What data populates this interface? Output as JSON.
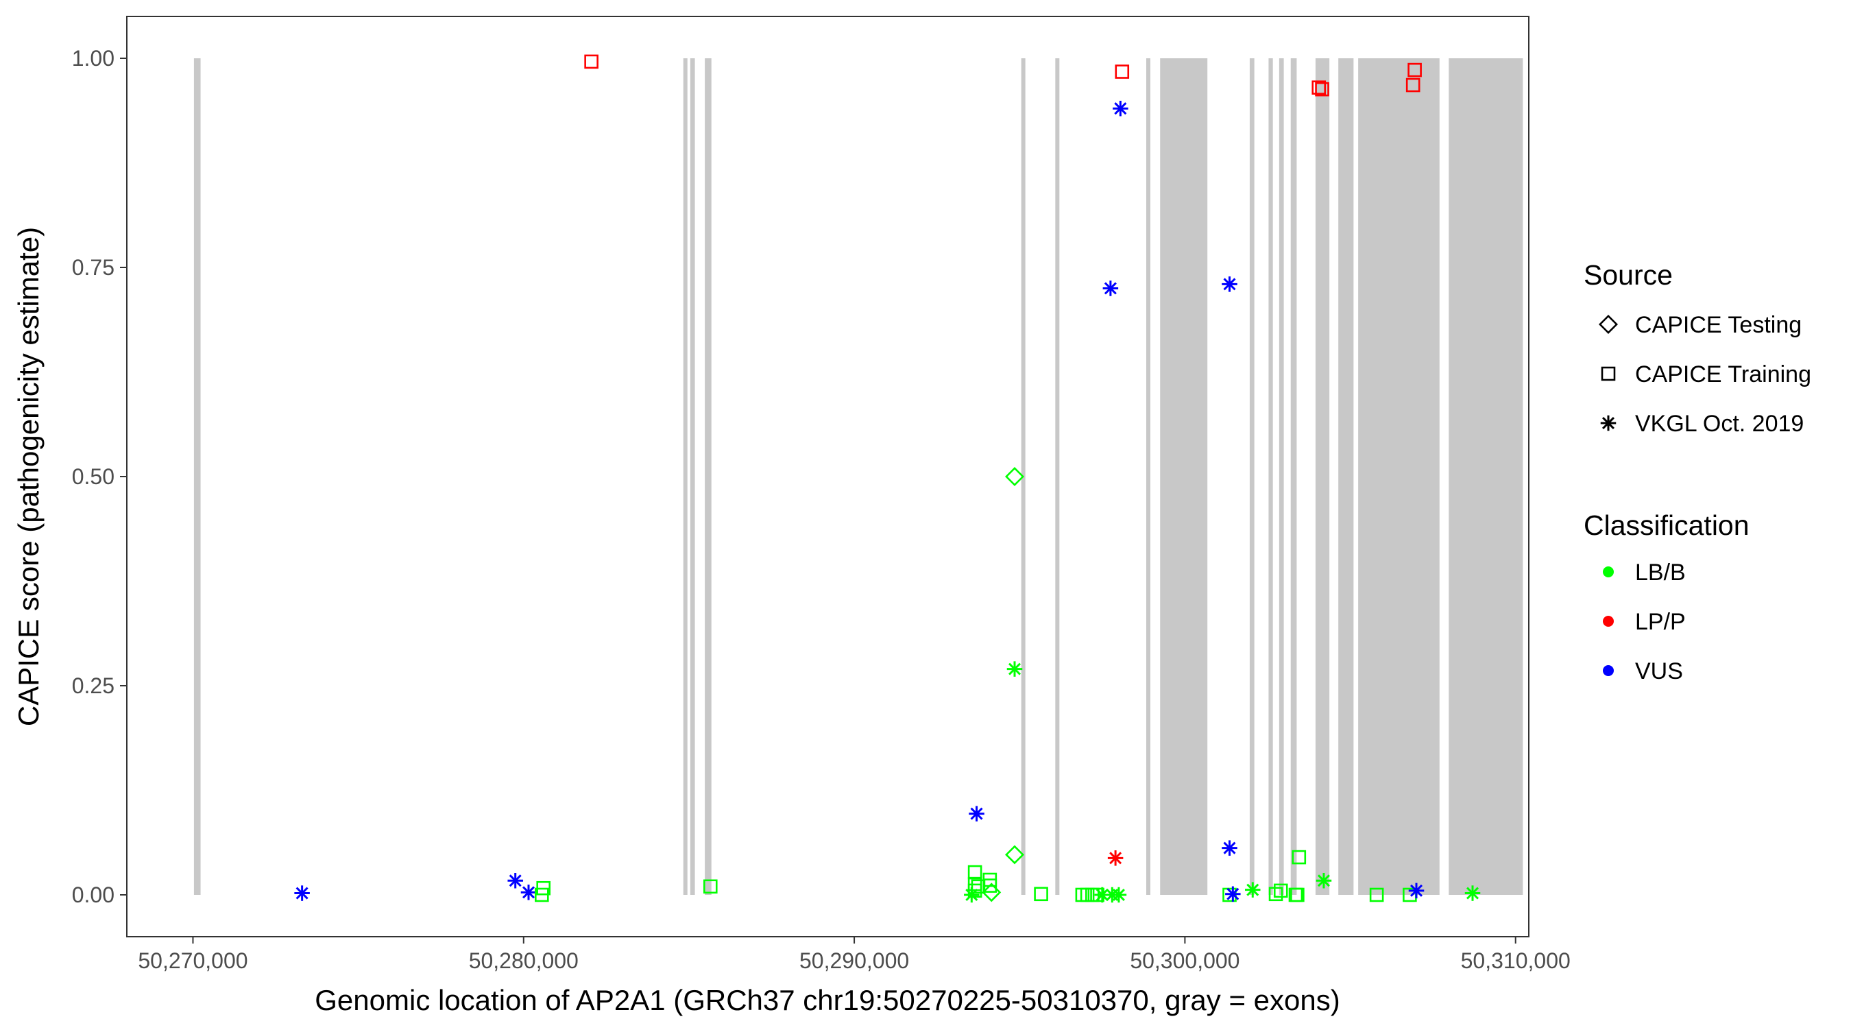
{
  "colors": {
    "lbb": "#00ff00",
    "lpp": "#ff0000",
    "vus": "#0000ff",
    "exon": "#c8c8c8",
    "axis": "#333333",
    "panel_border": "#333333"
  },
  "chart_data": {
    "type": "scatter",
    "xlabel": "Genomic location of AP2A1 (GRCh37 chr19:50270225-50310370, gray = exons)",
    "ylabel": "CAPICE score (pathogenicity estimate)",
    "xlim": [
      50268000,
      50310400
    ],
    "ylim": [
      -0.05,
      1.05
    ],
    "x_ticks": [
      50270000,
      50280000,
      50290000,
      50300000,
      50310000
    ],
    "x_tick_labels": [
      "50,270,000",
      "50,280,000",
      "50,290,000",
      "50,300,000",
      "50,310,000"
    ],
    "y_ticks": [
      0,
      0.25,
      0.5,
      0.75,
      1.0
    ],
    "y_tick_labels": [
      "0.00",
      "0.25",
      "0.50",
      "0.75",
      "1.00"
    ],
    "grid": false,
    "exons": [
      [
        50270030,
        50270230
      ],
      [
        50284830,
        50284920
      ],
      [
        50285040,
        50285180
      ],
      [
        50285480,
        50285680
      ],
      [
        50295050,
        50295140
      ],
      [
        50296080,
        50296180
      ],
      [
        50298830,
        50298950
      ],
      [
        50299250,
        50300680
      ],
      [
        50301960,
        50302100
      ],
      [
        50302530,
        50302660
      ],
      [
        50302850,
        50302990
      ],
      [
        50303200,
        50303380
      ],
      [
        50303950,
        50304370
      ],
      [
        50304640,
        50305100
      ],
      [
        50305240,
        50307700
      ],
      [
        50307980,
        50310220
      ]
    ],
    "legend": {
      "placement": "right",
      "source_title": "Source",
      "source_items": [
        {
          "label": "CAPICE Testing",
          "shape": "diamond"
        },
        {
          "label": "CAPICE Training",
          "shape": "square"
        },
        {
          "label": "VKGL Oct. 2019",
          "shape": "asterisk"
        }
      ],
      "class_title": "Classification",
      "class_items": [
        {
          "label": "LB/B",
          "color": "#00ff00"
        },
        {
          "label": "LP/P",
          "color": "#ff0000"
        },
        {
          "label": "VUS",
          "color": "#0000ff"
        }
      ]
    },
    "points": [
      {
        "x": 50273300,
        "y": 0.002,
        "shape": "asterisk",
        "class": "VUS"
      },
      {
        "x": 50279750,
        "y": 0.017,
        "shape": "asterisk",
        "class": "VUS"
      },
      {
        "x": 50280150,
        "y": 0.003,
        "shape": "asterisk",
        "class": "VUS"
      },
      {
        "x": 50280550,
        "y": 0.0,
        "shape": "square",
        "class": "LB/B"
      },
      {
        "x": 50280600,
        "y": 0.008,
        "shape": "square",
        "class": "LB/B"
      },
      {
        "x": 50282050,
        "y": 0.996,
        "shape": "square",
        "class": "LP/P"
      },
      {
        "x": 50285650,
        "y": 0.01,
        "shape": "square",
        "class": "LB/B"
      },
      {
        "x": 50293550,
        "y": 0.0,
        "shape": "asterisk",
        "class": "LB/B"
      },
      {
        "x": 50293650,
        "y": 0.005,
        "shape": "square",
        "class": "LB/B"
      },
      {
        "x": 50293650,
        "y": 0.013,
        "shape": "square",
        "class": "LB/B"
      },
      {
        "x": 50293650,
        "y": 0.027,
        "shape": "square",
        "class": "LB/B"
      },
      {
        "x": 50293700,
        "y": 0.097,
        "shape": "asterisk",
        "class": "VUS"
      },
      {
        "x": 50293750,
        "y": 0.01,
        "shape": "square",
        "class": "LB/B"
      },
      {
        "x": 50294100,
        "y": 0.011,
        "shape": "square",
        "class": "LB/B"
      },
      {
        "x": 50294100,
        "y": 0.018,
        "shape": "square",
        "class": "LB/B"
      },
      {
        "x": 50294150,
        "y": 0.003,
        "shape": "diamond",
        "class": "LB/B"
      },
      {
        "x": 50294850,
        "y": 0.5,
        "shape": "diamond",
        "class": "LB/B"
      },
      {
        "x": 50294850,
        "y": 0.048,
        "shape": "diamond",
        "class": "LB/B"
      },
      {
        "x": 50294850,
        "y": 0.27,
        "shape": "asterisk",
        "class": "LB/B"
      },
      {
        "x": 50295650,
        "y": 0.001,
        "shape": "square",
        "class": "LB/B"
      },
      {
        "x": 50296900,
        "y": 0.0,
        "shape": "square",
        "class": "LB/B"
      },
      {
        "x": 50297050,
        "y": 0.0,
        "shape": "square",
        "class": "LB/B"
      },
      {
        "x": 50297200,
        "y": 0.0,
        "shape": "square",
        "class": "LB/B"
      },
      {
        "x": 50297350,
        "y": 0.0,
        "shape": "square",
        "class": "LB/B"
      },
      {
        "x": 50297500,
        "y": 0.0,
        "shape": "asterisk",
        "class": "LB/B"
      },
      {
        "x": 50297750,
        "y": 0.725,
        "shape": "asterisk",
        "class": "VUS"
      },
      {
        "x": 50297800,
        "y": 0.0,
        "shape": "asterisk",
        "class": "LB/B"
      },
      {
        "x": 50297900,
        "y": 0.044,
        "shape": "asterisk",
        "class": "LP/P"
      },
      {
        "x": 50298000,
        "y": 0.0,
        "shape": "asterisk",
        "class": "LB/B"
      },
      {
        "x": 50298050,
        "y": 0.94,
        "shape": "asterisk",
        "class": "VUS"
      },
      {
        "x": 50298100,
        "y": 0.984,
        "shape": "square",
        "class": "LP/P"
      },
      {
        "x": 50301350,
        "y": 0.73,
        "shape": "asterisk",
        "class": "VUS"
      },
      {
        "x": 50301350,
        "y": 0.056,
        "shape": "asterisk",
        "class": "VUS"
      },
      {
        "x": 50301350,
        "y": 0.0,
        "shape": "square",
        "class": "LB/B"
      },
      {
        "x": 50301450,
        "y": 0.001,
        "shape": "asterisk",
        "class": "VUS"
      },
      {
        "x": 50302050,
        "y": 0.006,
        "shape": "asterisk",
        "class": "LB/B"
      },
      {
        "x": 50302750,
        "y": 0.001,
        "shape": "square",
        "class": "LB/B"
      },
      {
        "x": 50302900,
        "y": 0.005,
        "shape": "square",
        "class": "LB/B"
      },
      {
        "x": 50303350,
        "y": 0.0,
        "shape": "square",
        "class": "LB/B"
      },
      {
        "x": 50303400,
        "y": 0.0,
        "shape": "square",
        "class": "LB/B"
      },
      {
        "x": 50303450,
        "y": 0.045,
        "shape": "square",
        "class": "LB/B"
      },
      {
        "x": 50304050,
        "y": 0.965,
        "shape": "square",
        "class": "LP/P"
      },
      {
        "x": 50304150,
        "y": 0.963,
        "shape": "square",
        "class": "LP/P"
      },
      {
        "x": 50304200,
        "y": 0.017,
        "shape": "asterisk",
        "class": "LB/B"
      },
      {
        "x": 50305800,
        "y": 0.0,
        "shape": "square",
        "class": "LB/B"
      },
      {
        "x": 50306800,
        "y": 0.0,
        "shape": "square",
        "class": "LB/B"
      },
      {
        "x": 50306900,
        "y": 0.968,
        "shape": "square",
        "class": "LP/P"
      },
      {
        "x": 50306950,
        "y": 0.986,
        "shape": "square",
        "class": "LP/P"
      },
      {
        "x": 50307000,
        "y": 0.005,
        "shape": "asterisk",
        "class": "VUS"
      },
      {
        "x": 50308700,
        "y": 0.002,
        "shape": "asterisk",
        "class": "LB/B"
      }
    ]
  }
}
